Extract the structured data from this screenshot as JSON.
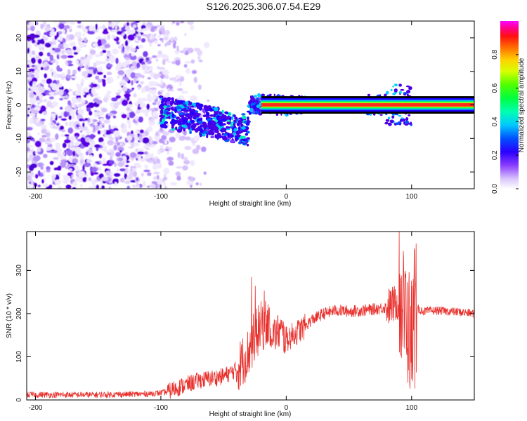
{
  "title": "S126.2025.306.07.54.E29",
  "colors": {
    "snr_line": "#e8312d",
    "spectrum_band": "#e8312d",
    "purple_dark": "#6a00e8",
    "purple_light": "#d9c6fb",
    "axis": "#000000"
  },
  "chart_data": [
    {
      "type": "heatmap",
      "name": "spectrogram",
      "xlabel": "Height of straight line (km)",
      "ylabel": "Frequency (Hz)",
      "xlim": [
        -207,
        150
      ],
      "ylim": [
        -25,
        25
      ],
      "xticks": [
        -200,
        -100,
        0,
        100
      ],
      "yticks": [
        -20,
        -10,
        0,
        10,
        20
      ],
      "tone_frequency": 0,
      "tone_region": [
        -22,
        150
      ],
      "noise_region": [
        -207,
        -95
      ],
      "colorbar": {
        "label": "Normalized spectral amplitude",
        "range": [
          0.0,
          1.0
        ],
        "ticks": [
          0.0,
          0.2,
          0.4,
          0.6,
          0.8
        ],
        "tick_labels": [
          "0.0",
          "0.2",
          "0.4",
          "0.6",
          "0.8"
        ]
      }
    },
    {
      "type": "line",
      "name": "snr",
      "xlabel": "Height of straight line (km)",
      "ylabel": "SNR (10 * v/v)",
      "xlim": [
        -207,
        150
      ],
      "ylim": [
        0,
        390
      ],
      "xticks": [
        -200,
        -100,
        0,
        100
      ],
      "yticks": [
        0,
        100,
        200,
        300
      ],
      "x": [
        -207,
        -150,
        -110,
        -95,
        -90,
        -80,
        -70,
        -60,
        -50,
        -40,
        -35,
        -30,
        -25,
        -20,
        -15,
        -10,
        -5,
        0,
        5,
        10,
        15,
        20,
        30,
        40,
        50,
        60,
        70,
        80,
        85,
        90,
        95,
        100,
        105,
        110,
        120,
        130,
        140,
        150
      ],
      "y": [
        12,
        12,
        14,
        18,
        25,
        35,
        45,
        50,
        55,
        70,
        90,
        110,
        150,
        170,
        180,
        150,
        160,
        140,
        150,
        160,
        170,
        185,
        200,
        208,
        205,
        207,
        210,
        215,
        220,
        230,
        200,
        140,
        210,
        205,
        207,
        205,
        203,
        200
      ]
    }
  ]
}
